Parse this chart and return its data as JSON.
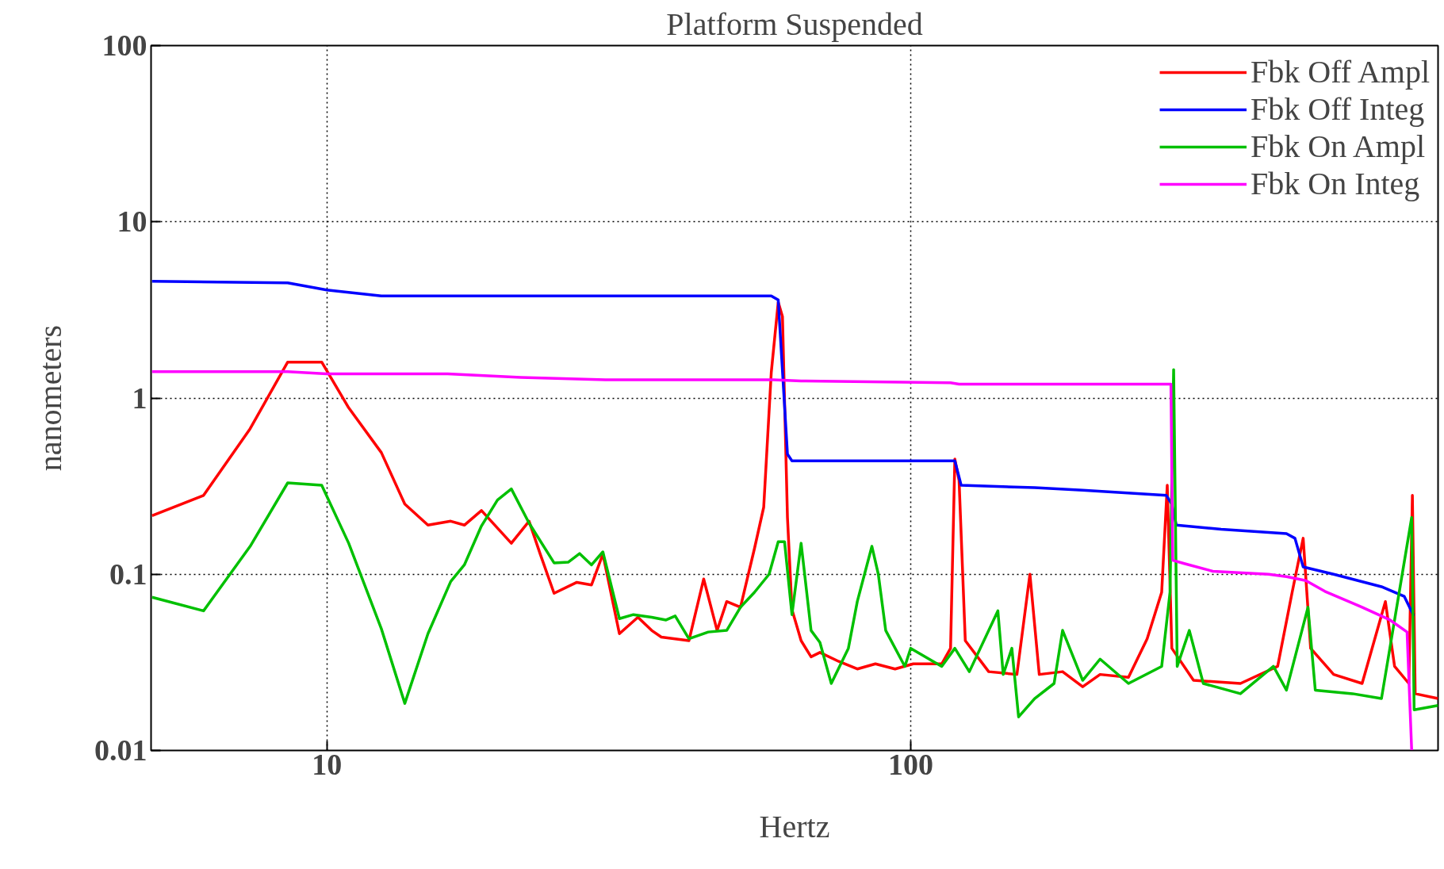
{
  "chart_data": {
    "type": "line",
    "title": "Platform Suspended",
    "xlabel": "Hertz",
    "ylabel": "nanometers",
    "log": "xy",
    "grid": true,
    "legend": "top right",
    "marker": "none",
    "line_style": "solid",
    "xlim": [
      5,
      800
    ],
    "xticks": [
      10,
      100
    ],
    "ylim": [
      0.01,
      100
    ],
    "yticks": [
      0.01,
      0.1,
      1,
      10,
      100
    ],
    "series": [
      {
        "name": "Fbk Off Ampl",
        "color": "#ff0000",
        "x": [
          5.02,
          6.15,
          7.39,
          8.57,
          9.8,
          10.9,
          12.4,
          13.6,
          14.9,
          16.3,
          17.2,
          18.4,
          20.7,
          22.2,
          23.2,
          24.5,
          26.8,
          28.4,
          29.7,
          31.7,
          34.1,
          36.0,
          37.4,
          41.7,
          44.2,
          46.6,
          48.4,
          51.1,
          54.0,
          56.0,
          57.7,
          59.3,
          60.3,
          61.5,
          62.6,
          64.9,
          67.5,
          69.9,
          75.3,
          81.0,
          87.0,
          94.0,
          101,
          113,
          117,
          119,
          121,
          124,
          136,
          152,
          160,
          166,
          182,
          197,
          211,
          236,
          254,
          269,
          275,
          280,
          305,
          367,
          425,
          450,
          470,
          484,
          530,
          593,
          650,
          674,
          713,
          723,
          731,
          800
        ],
        "values": [
          0.215,
          0.28,
          0.67,
          1.6,
          1.6,
          0.88,
          0.49,
          0.25,
          0.19,
          0.2,
          0.19,
          0.23,
          0.15,
          0.2,
          0.13,
          0.078,
          0.09,
          0.087,
          0.13,
          0.046,
          0.057,
          0.048,
          0.044,
          0.042,
          0.094,
          0.048,
          0.07,
          0.065,
          0.14,
          0.24,
          1.4,
          3.5,
          2.9,
          0.21,
          0.063,
          0.042,
          0.034,
          0.036,
          0.032,
          0.029,
          0.031,
          0.029,
          0.031,
          0.031,
          0.038,
          0.45,
          0.34,
          0.042,
          0.028,
          0.027,
          0.1,
          0.027,
          0.028,
          0.023,
          0.027,
          0.026,
          0.043,
          0.079,
          0.32,
          0.038,
          0.025,
          0.024,
          0.03,
          0.079,
          0.16,
          0.038,
          0.027,
          0.024,
          0.07,
          0.03,
          0.024,
          0.28,
          0.021,
          0.0197
        ]
      },
      {
        "name": "Fbk Off Integ",
        "color": "#0000ff",
        "x": [
          5.02,
          8.57,
          10,
          12.4,
          57.7,
          59.3,
          61.5,
          62.6,
          119,
          122,
          163,
          197,
          274,
          280,
          285,
          340,
          440,
          455,
          470,
          530,
          640,
          700,
          727
        ],
        "values": [
          4.6,
          4.5,
          4.1,
          3.8,
          3.8,
          3.6,
          0.48,
          0.44,
          0.44,
          0.32,
          0.31,
          0.3,
          0.28,
          0.25,
          0.19,
          0.18,
          0.17,
          0.16,
          0.11,
          0.1,
          0.085,
          0.075,
          0.058
        ]
      },
      {
        "name": "Fbk On Ampl",
        "color": "#00c000",
        "x": [
          5.02,
          6.15,
          7.39,
          8.57,
          9.8,
          10.9,
          12.4,
          13.6,
          14.9,
          16.3,
          17.2,
          18.4,
          19.6,
          20.7,
          22.2,
          24.5,
          25.9,
          27.1,
          28.4,
          29.7,
          31.7,
          33.5,
          36.0,
          38.1,
          39.5,
          41.7,
          45.0,
          48.4,
          51.1,
          54.0,
          57.2,
          59.3,
          60.8,
          62.6,
          64.9,
          67.5,
          69.9,
          73.1,
          78.2,
          81.0,
          85.8,
          88.0,
          90.6,
          97.7,
          100,
          113,
          119,
          126,
          141,
          144,
          149,
          153,
          163,
          176,
          182,
          197,
          211,
          236,
          269,
          278,
          282,
          286,
          300,
          317,
          367,
          418,
          440,
          479,
          493,
          571,
          640,
          721,
          728,
          800
        ],
        "values": [
          0.074,
          0.062,
          0.144,
          0.33,
          0.32,
          0.15,
          0.049,
          0.0185,
          0.046,
          0.091,
          0.113,
          0.188,
          0.264,
          0.305,
          0.195,
          0.116,
          0.117,
          0.131,
          0.113,
          0.134,
          0.056,
          0.059,
          0.057,
          0.055,
          0.058,
          0.043,
          0.047,
          0.048,
          0.065,
          0.079,
          0.1,
          0.153,
          0.153,
          0.059,
          0.15,
          0.048,
          0.041,
          0.024,
          0.038,
          0.07,
          0.144,
          0.1,
          0.048,
          0.03,
          0.038,
          0.03,
          0.038,
          0.028,
          0.062,
          0.027,
          0.038,
          0.0155,
          0.0197,
          0.024,
          0.048,
          0.025,
          0.033,
          0.024,
          0.03,
          0.079,
          1.45,
          0.03,
          0.048,
          0.024,
          0.021,
          0.03,
          0.022,
          0.065,
          0.022,
          0.021,
          0.0197,
          0.21,
          0.017,
          0.018
        ]
      },
      {
        "name": "Fbk On Integ",
        "color": "#ff00ff",
        "x": [
          5.02,
          8.57,
          10,
          16.1,
          18.6,
          21.5,
          30,
          58.2,
          64.9,
          117,
          121,
          279,
          281,
          294,
          329,
          410,
          440,
          475,
          512,
          593,
          662,
          708,
          721
        ],
        "values": [
          1.41,
          1.41,
          1.37,
          1.37,
          1.34,
          1.31,
          1.27,
          1.27,
          1.25,
          1.22,
          1.2,
          1.2,
          0.12,
          0.115,
          0.104,
          0.1,
          0.097,
          0.092,
          0.08,
          0.065,
          0.055,
          0.047,
          0.01
        ]
      }
    ]
  }
}
